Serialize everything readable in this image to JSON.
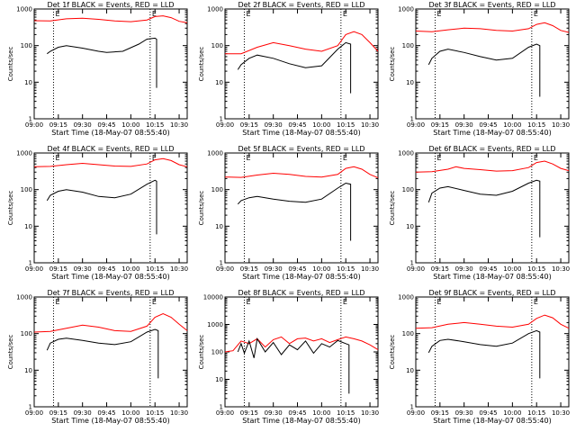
{
  "chart_data": [
    {
      "type": "line",
      "title": "Det 1f BLACK = Events, RED = LLD",
      "xlabel": "Start Time (18-May-07 08:55:40)",
      "ylabel": "Counts/sec",
      "x_tick_labels": [
        "09:00",
        "09:15",
        "09:30",
        "09:45",
        "10:00",
        "10:15",
        "10:30"
      ],
      "y_tick_labels": [
        "1",
        "10",
        "100",
        "1000"
      ],
      "ylim": [
        1,
        1000
      ],
      "yscale": "log",
      "markers": [
        {
          "time": "09:12",
          "label": "E"
        },
        {
          "time": "10:12",
          "label": "E"
        }
      ],
      "series": [
        {
          "color": "#ff0000",
          "x": [
            "09:00",
            "09:10",
            "09:20",
            "09:30",
            "09:40",
            "09:50",
            "10:00",
            "10:10",
            "10:15",
            "10:20",
            "10:25",
            "10:30",
            "10:35"
          ],
          "y": [
            480,
            470,
            540,
            560,
            520,
            470,
            450,
            500,
            620,
            650,
            580,
            460,
            420
          ]
        },
        {
          "color": "#000000",
          "x": [
            "09:08",
            "09:10",
            "09:15",
            "09:20",
            "09:30",
            "09:40",
            "09:45",
            "09:55",
            "10:05",
            "10:10",
            "10:15",
            "10:16",
            "10:16"
          ],
          "y": [
            60,
            70,
            90,
            100,
            85,
            70,
            65,
            70,
            110,
            150,
            160,
            150,
            7
          ]
        }
      ]
    },
    {
      "type": "line",
      "title": "Det 2f BLACK = Events, RED = LLD",
      "xlabel": "Start Time (18-May-07 08:55:40)",
      "ylabel": "Counts/sec",
      "x_tick_labels": [
        "09:00",
        "09:15",
        "09:30",
        "09:45",
        "10:00",
        "10:15",
        "10:30"
      ],
      "y_tick_labels": [
        "1",
        "10",
        "100",
        "1000"
      ],
      "ylim": [
        1,
        1000
      ],
      "yscale": "log",
      "markers": [
        {
          "time": "09:12",
          "label": "E"
        },
        {
          "time": "10:12",
          "label": "E"
        }
      ],
      "series": [
        {
          "color": "#ff0000",
          "x": [
            "09:00",
            "09:10",
            "09:20",
            "09:30",
            "09:40",
            "09:50",
            "10:00",
            "10:10",
            "10:15",
            "10:20",
            "10:25",
            "10:30",
            "10:35"
          ],
          "y": [
            60,
            60,
            90,
            120,
            100,
            80,
            70,
            100,
            200,
            240,
            200,
            120,
            70
          ]
        },
        {
          "color": "#000000",
          "x": [
            "09:08",
            "09:10",
            "09:15",
            "09:20",
            "09:30",
            "09:40",
            "09:50",
            "10:00",
            "10:10",
            "10:15",
            "10:18",
            "10:18"
          ],
          "y": [
            22,
            30,
            45,
            55,
            45,
            32,
            25,
            28,
            80,
            120,
            110,
            5
          ]
        }
      ]
    },
    {
      "type": "line",
      "title": "Det 3f BLACK = Events, RED = LLD",
      "xlabel": "Start Time (18-May-07 08:55:40)",
      "ylabel": "Counts/sec",
      "x_tick_labels": [
        "09:00",
        "09:15",
        "09:30",
        "09:45",
        "10:00",
        "10:15",
        "10:30"
      ],
      "y_tick_labels": [
        "1",
        "10",
        "100",
        "1000"
      ],
      "ylim": [
        1,
        1000
      ],
      "yscale": "log",
      "markers": [
        {
          "time": "09:12",
          "label": "E"
        },
        {
          "time": "10:12",
          "label": "E"
        }
      ],
      "series": [
        {
          "color": "#ff0000",
          "x": [
            "09:00",
            "09:10",
            "09:20",
            "09:30",
            "09:40",
            "09:50",
            "10:00",
            "10:10",
            "10:15",
            "10:20",
            "10:25",
            "10:30",
            "10:35"
          ],
          "y": [
            250,
            240,
            270,
            300,
            290,
            260,
            250,
            290,
            380,
            420,
            350,
            260,
            230
          ]
        },
        {
          "color": "#000000",
          "x": [
            "09:08",
            "09:10",
            "09:15",
            "09:20",
            "09:30",
            "09:40",
            "09:50",
            "10:00",
            "10:10",
            "10:15",
            "10:17",
            "10:17"
          ],
          "y": [
            30,
            45,
            70,
            80,
            65,
            50,
            40,
            45,
            90,
            110,
            100,
            4
          ]
        }
      ]
    },
    {
      "type": "line",
      "title": "Det 4f BLACK = Events, RED = LLD",
      "xlabel": "Start Time (18-May-07 08:55:40)",
      "ylabel": "Counts/sec",
      "x_tick_labels": [
        "09:00",
        "09:15",
        "09:30",
        "09:45",
        "10:00",
        "10:15",
        "10:30"
      ],
      "y_tick_labels": [
        "1",
        "10",
        "100",
        "1000"
      ],
      "ylim": [
        1,
        1000
      ],
      "yscale": "log",
      "markers": [
        {
          "time": "09:12",
          "label": "E"
        },
        {
          "time": "10:12",
          "label": "E"
        }
      ],
      "series": [
        {
          "color": "#ff0000",
          "x": [
            "09:00",
            "09:10",
            "09:20",
            "09:30",
            "09:40",
            "09:50",
            "10:00",
            "10:10",
            "10:15",
            "10:20",
            "10:25",
            "10:30",
            "10:35"
          ],
          "y": [
            420,
            430,
            480,
            520,
            480,
            440,
            430,
            500,
            650,
            700,
            620,
            480,
            420
          ]
        },
        {
          "color": "#000000",
          "x": [
            "09:08",
            "09:10",
            "09:15",
            "09:20",
            "09:30",
            "09:40",
            "09:50",
            "10:00",
            "10:10",
            "10:15",
            "10:16",
            "10:16"
          ],
          "y": [
            50,
            70,
            90,
            100,
            85,
            65,
            60,
            75,
            140,
            180,
            170,
            6
          ]
        }
      ]
    },
    {
      "type": "line",
      "title": "Det 5f BLACK = Events, RED = LLD",
      "xlabel": "Start Time (18-May-07 08:55:40)",
      "ylabel": "Counts/sec",
      "x_tick_labels": [
        "09:00",
        "09:15",
        "09:30",
        "09:45",
        "10:00",
        "10:15",
        "10:30"
      ],
      "y_tick_labels": [
        "1",
        "10",
        "100",
        "1000"
      ],
      "ylim": [
        1,
        1000
      ],
      "yscale": "log",
      "markers": [
        {
          "time": "09:12",
          "label": "E"
        },
        {
          "time": "10:12",
          "label": "E"
        }
      ],
      "series": [
        {
          "color": "#ff0000",
          "x": [
            "09:00",
            "09:10",
            "09:20",
            "09:30",
            "09:40",
            "09:50",
            "10:00",
            "10:10",
            "10:15",
            "10:20",
            "10:25",
            "10:30",
            "10:35"
          ],
          "y": [
            220,
            215,
            250,
            280,
            260,
            230,
            220,
            260,
            380,
            420,
            360,
            260,
            210
          ]
        },
        {
          "color": "#000000",
          "x": [
            "09:08",
            "09:10",
            "09:15",
            "09:20",
            "09:30",
            "09:40",
            "09:50",
            "10:00",
            "10:10",
            "10:15",
            "10:18",
            "10:18"
          ],
          "y": [
            40,
            50,
            60,
            65,
            55,
            48,
            45,
            55,
            110,
            150,
            140,
            4
          ]
        }
      ]
    },
    {
      "type": "line",
      "title": "Det 6f BLACK = Events, RED = LLD",
      "xlabel": "Start Time (18-May-07 08:55:40)",
      "ylabel": "Counts/sec",
      "x_tick_labels": [
        "09:00",
        "09:15",
        "09:30",
        "09:45",
        "10:00",
        "10:15",
        "10:30"
      ],
      "y_tick_labels": [
        "1",
        "10",
        "100",
        "1000"
      ],
      "ylim": [
        1,
        1000
      ],
      "yscale": "log",
      "markers": [
        {
          "time": "09:12",
          "label": "E"
        },
        {
          "time": "10:12",
          "label": "E"
        }
      ],
      "series": [
        {
          "color": "#ff0000",
          "x": [
            "09:00",
            "09:10",
            "09:20",
            "09:25",
            "09:30",
            "09:40",
            "09:50",
            "10:00",
            "10:10",
            "10:15",
            "10:20",
            "10:25",
            "10:30",
            "10:35"
          ],
          "y": [
            300,
            310,
            360,
            420,
            380,
            350,
            320,
            330,
            400,
            550,
            600,
            500,
            380,
            330
          ]
        },
        {
          "color": "#000000",
          "x": [
            "09:08",
            "09:10",
            "09:15",
            "09:20",
            "09:30",
            "09:40",
            "09:50",
            "10:00",
            "10:10",
            "10:15",
            "10:17",
            "10:17"
          ],
          "y": [
            45,
            80,
            110,
            120,
            95,
            75,
            70,
            90,
            150,
            180,
            170,
            5
          ]
        }
      ]
    },
    {
      "type": "line",
      "title": "Det 7f BLACK = Events, RED = LLD",
      "xlabel": "Start Time (18-May-07 08:55:40)",
      "ylabel": "Counts/sec",
      "x_tick_labels": [
        "09:00",
        "09:15",
        "09:30",
        "09:45",
        "10:00",
        "10:15",
        "10:30"
      ],
      "y_tick_labels": [
        "1",
        "10",
        "100",
        "1000"
      ],
      "ylim": [
        1,
        1000
      ],
      "yscale": "log",
      "markers": [
        {
          "time": "09:12",
          "label": "E"
        },
        {
          "time": "10:12",
          "label": "E"
        }
      ],
      "series": [
        {
          "color": "#ff0000",
          "x": [
            "09:00",
            "09:10",
            "09:20",
            "09:30",
            "09:40",
            "09:50",
            "10:00",
            "10:10",
            "10:15",
            "10:20",
            "10:25",
            "10:30",
            "10:35"
          ],
          "y": [
            110,
            115,
            140,
            170,
            150,
            120,
            115,
            160,
            280,
            350,
            280,
            180,
            120
          ]
        },
        {
          "color": "#000000",
          "x": [
            "09:08",
            "09:10",
            "09:15",
            "09:20",
            "09:30",
            "09:40",
            "09:50",
            "10:00",
            "10:10",
            "10:15",
            "10:17",
            "10:17"
          ],
          "y": [
            35,
            55,
            70,
            75,
            65,
            55,
            50,
            60,
            110,
            130,
            120,
            6
          ]
        }
      ]
    },
    {
      "type": "line",
      "title": "Det 8f BLACK = Events, RED = LLD",
      "xlabel": "Start Time (18-May-07 08:55:40)",
      "ylabel": "Counts/sec",
      "x_tick_labels": [
        "09:00",
        "09:15",
        "09:30",
        "09:45",
        "10:00",
        "10:15",
        "10:30"
      ],
      "y_tick_labels": [
        "1",
        "10",
        "100",
        "1000",
        "10000"
      ],
      "ylim": [
        1,
        10000
      ],
      "yscale": "log",
      "markers": [
        {
          "time": "09:12",
          "label": "E"
        },
        {
          "time": "10:12",
          "label": "E"
        }
      ],
      "series": [
        {
          "color": "#ff0000",
          "x": [
            "09:00",
            "09:05",
            "09:10",
            "09:15",
            "09:20",
            "09:25",
            "09:30",
            "09:35",
            "09:40",
            "09:45",
            "09:50",
            "09:55",
            "10:00",
            "10:05",
            "10:10",
            "10:15",
            "10:20",
            "10:25",
            "10:30",
            "10:35"
          ],
          "y": [
            100,
            110,
            250,
            200,
            300,
            150,
            280,
            350,
            200,
            300,
            320,
            250,
            300,
            220,
            280,
            350,
            300,
            250,
            180,
            120
          ]
        },
        {
          "color": "#000000",
          "x": [
            "09:08",
            "09:10",
            "09:12",
            "09:15",
            "09:18",
            "09:20",
            "09:25",
            "09:30",
            "09:35",
            "09:40",
            "09:45",
            "09:50",
            "09:55",
            "10:00",
            "10:05",
            "10:10",
            "10:15",
            "10:17",
            "10:17"
          ],
          "y": [
            100,
            200,
            90,
            250,
            60,
            300,
            100,
            220,
            80,
            180,
            120,
            250,
            90,
            200,
            150,
            260,
            200,
            180,
            3
          ]
        }
      ]
    },
    {
      "type": "line",
      "title": "Det 9f BLACK = Events, RED = LLD",
      "xlabel": "Start Time (18-May-07 08:55:40)",
      "ylabel": "Counts/sec",
      "x_tick_labels": [
        "09:00",
        "09:15",
        "09:30",
        "09:45",
        "10:00",
        "10:15",
        "10:30"
      ],
      "y_tick_labels": [
        "1",
        "10",
        "100",
        "1000"
      ],
      "ylim": [
        1,
        1000
      ],
      "yscale": "log",
      "markers": [
        {
          "time": "09:12",
          "label": "E"
        },
        {
          "time": "10:12",
          "label": "E"
        }
      ],
      "series": [
        {
          "color": "#ff0000",
          "x": [
            "09:00",
            "09:10",
            "09:20",
            "09:30",
            "09:40",
            "09:50",
            "10:00",
            "10:10",
            "10:15",
            "10:20",
            "10:25",
            "10:30",
            "10:35"
          ],
          "y": [
            140,
            145,
            180,
            200,
            180,
            160,
            150,
            180,
            260,
            320,
            270,
            180,
            140
          ]
        },
        {
          "color": "#000000",
          "x": [
            "09:08",
            "09:10",
            "09:15",
            "09:20",
            "09:30",
            "09:40",
            "09:50",
            "10:00",
            "10:10",
            "10:15",
            "10:17",
            "10:17"
          ],
          "y": [
            30,
            45,
            65,
            70,
            60,
            50,
            45,
            55,
            100,
            120,
            110,
            6
          ]
        }
      ]
    }
  ]
}
